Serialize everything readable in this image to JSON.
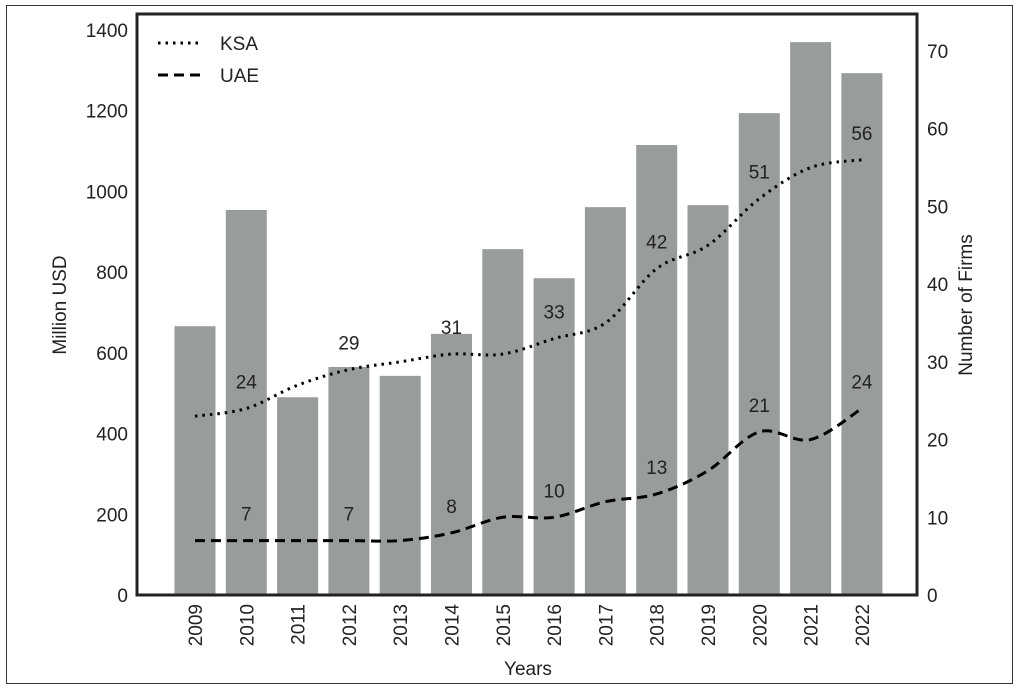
{
  "chart_data": {
    "type": "bar+line",
    "title": "",
    "xlabel": "Years",
    "ylabel": "Million USD",
    "y2label": "Number of Firms",
    "ylim": [
      0,
      1400
    ],
    "y2lim": [
      0,
      73
    ],
    "yticks": [
      0,
      200,
      400,
      600,
      800,
      1000,
      1200,
      1400
    ],
    "y2ticks": [
      0,
      10,
      20,
      30,
      40,
      50,
      60,
      70
    ],
    "grid": false,
    "legend_position": "top-left",
    "categories": [
      "2009",
      "2010",
      "2011",
      "2012",
      "2013",
      "2014",
      "2015",
      "2016",
      "2017",
      "2018",
      "2019",
      "2020",
      "2021",
      "2022"
    ],
    "bars": {
      "name": "Million USD",
      "color": "#999c9c",
      "values": [
        666,
        954,
        490,
        565,
        543,
        647,
        857,
        785,
        961,
        1115,
        966,
        1194,
        1370,
        1293
      ]
    },
    "series": [
      {
        "name": "KSA",
        "style": "dotted",
        "axis": "right",
        "values": [
          23,
          24,
          27,
          29,
          30,
          31,
          31,
          33,
          35,
          42,
          45,
          51,
          55,
          56
        ],
        "labels": [
          {
            "year": "2010",
            "text": "24"
          },
          {
            "year": "2012",
            "text": "29"
          },
          {
            "year": "2014",
            "text": "31"
          },
          {
            "year": "2016",
            "text": "33"
          },
          {
            "year": "2018",
            "text": "42"
          },
          {
            "year": "2020",
            "text": "51"
          },
          {
            "year": "2022",
            "text": "56"
          }
        ]
      },
      {
        "name": "UAE",
        "style": "dashed",
        "axis": "right",
        "values": [
          7,
          7,
          7,
          7,
          7,
          8,
          10,
          10,
          12,
          13,
          16,
          21,
          20,
          24
        ],
        "labels": [
          {
            "year": "2010",
            "text": "7"
          },
          {
            "year": "2012",
            "text": "7"
          },
          {
            "year": "2014",
            "text": "8"
          },
          {
            "year": "2016",
            "text": "10"
          },
          {
            "year": "2018",
            "text": "13"
          },
          {
            "year": "2020",
            "text": "21"
          },
          {
            "year": "2022",
            "text": "24"
          }
        ]
      }
    ]
  }
}
